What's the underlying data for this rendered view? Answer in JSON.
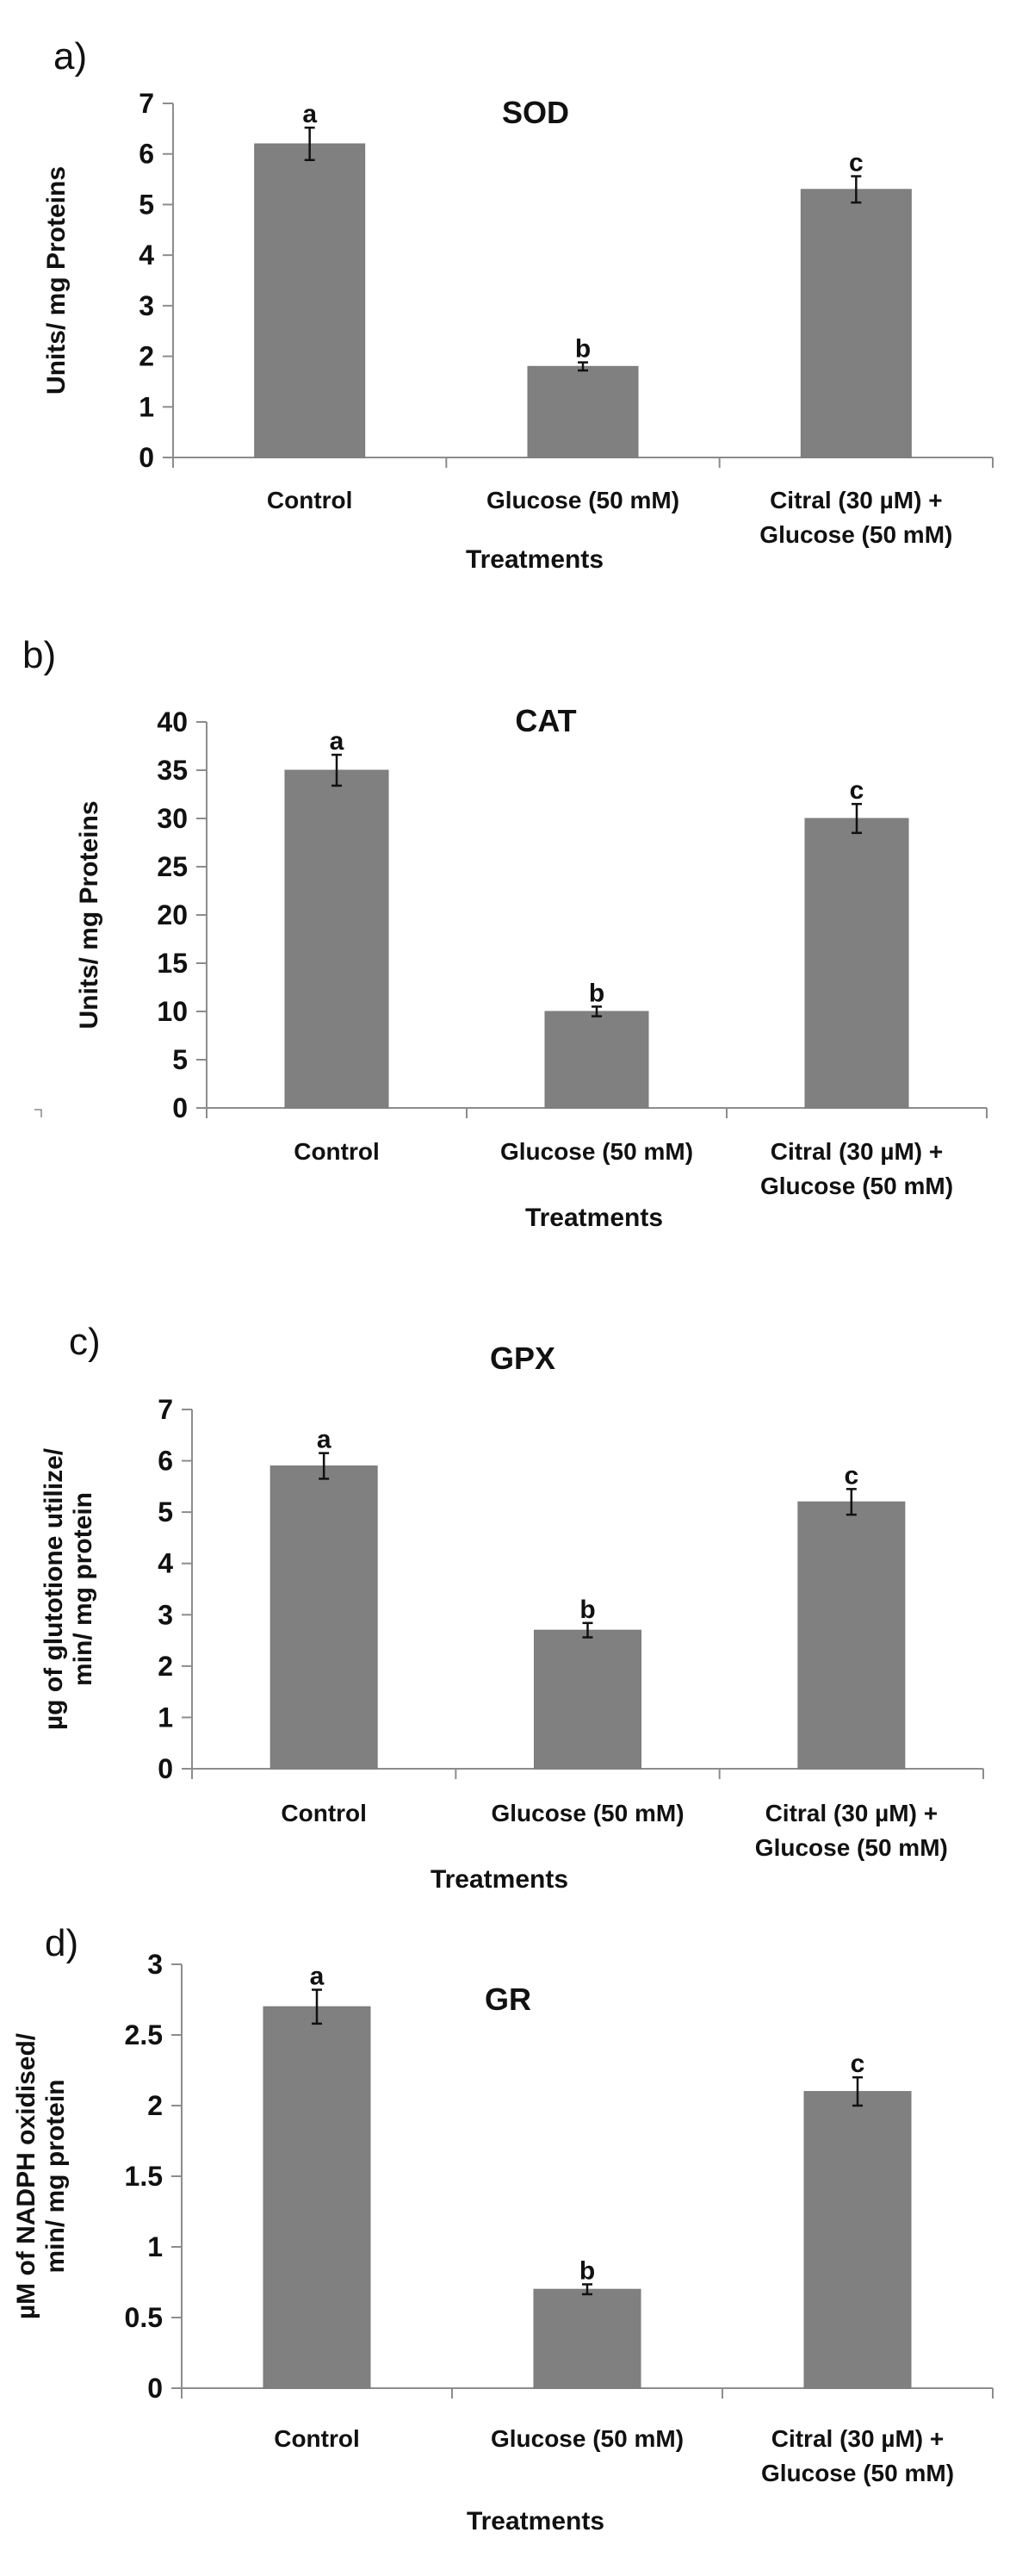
{
  "chart_data": [
    {
      "type": "bar",
      "panel": "a)",
      "title": "SOD",
      "xlabel": "Treatments",
      "ylabel": [
        "Units/ mg Proteins"
      ],
      "categories": [
        [
          "Control"
        ],
        [
          "Glucose (50 mM)"
        ],
        [
          "Citral (30 µM) +",
          "Glucose (50 mM)"
        ]
      ],
      "values": [
        6.2,
        1.8,
        5.3
      ],
      "errors": [
        0.32,
        0.08,
        0.26
      ],
      "significance": [
        "a",
        "b",
        "c"
      ],
      "ylim": [
        0,
        7
      ],
      "yticks": [
        0,
        1,
        2,
        3,
        4,
        5,
        6,
        7
      ],
      "ytick_labels": [
        "0",
        "1",
        "2",
        "3",
        "4",
        "5",
        "6",
        "7"
      ],
      "grid": false,
      "bar_color": "#808080"
    },
    {
      "type": "bar",
      "panel": "b)",
      "title": "CAT",
      "xlabel": "Treatments",
      "ylabel": [
        "Units/ mg Proteins"
      ],
      "categories": [
        [
          "Control"
        ],
        [
          "Glucose (50 mM)"
        ],
        [
          "Citral (30 µM) +",
          "Glucose (50 mM)"
        ]
      ],
      "values": [
        35,
        10,
        30
      ],
      "errors": [
        1.6,
        0.5,
        1.5
      ],
      "significance": [
        "a",
        "b",
        "c"
      ],
      "ylim": [
        0,
        40
      ],
      "yticks": [
        0,
        5,
        10,
        15,
        20,
        25,
        30,
        35,
        40
      ],
      "ytick_labels": [
        "0",
        "5",
        "10",
        "15",
        "20",
        "25",
        "30",
        "35",
        "40"
      ],
      "grid": false,
      "bar_color": "#808080"
    },
    {
      "type": "bar",
      "panel": "c)",
      "title": "GPX",
      "xlabel": "Treatments",
      "ylabel": [
        "µg of glutotione utilize/",
        "min/ mg protein"
      ],
      "categories": [
        [
          "Control"
        ],
        [
          "Glucose (50 mM)"
        ],
        [
          "Citral (30 µM) +",
          "Glucose (50 mM)"
        ]
      ],
      "values": [
        5.9,
        2.7,
        5.2
      ],
      "errors": [
        0.25,
        0.14,
        0.25
      ],
      "significance": [
        "a",
        "b",
        "c"
      ],
      "ylim": [
        0,
        7
      ],
      "yticks": [
        0,
        1,
        2,
        3,
        4,
        5,
        6,
        7
      ],
      "ytick_labels": [
        "0",
        "1",
        "2",
        "3",
        "4",
        "5",
        "6",
        "7"
      ],
      "grid": false,
      "bar_color": "#808080"
    },
    {
      "type": "bar",
      "panel": "d)",
      "title": "GR",
      "xlabel": "Treatments",
      "ylabel": [
        "µM of NADPH oxidised/",
        "min/ mg protein"
      ],
      "categories": [
        [
          "Control"
        ],
        [
          "Glucose (50 mM)"
        ],
        [
          "Citral (30 µM) +",
          "Glucose (50 mM)"
        ]
      ],
      "values": [
        2.7,
        0.7,
        2.1
      ],
      "errors": [
        0.12,
        0.035,
        0.1
      ],
      "significance": [
        "a",
        "b",
        "c"
      ],
      "ylim": [
        0,
        3
      ],
      "yticks": [
        0,
        0.5,
        1,
        1.5,
        2,
        2.5,
        3
      ],
      "ytick_labels": [
        "0",
        "0.5",
        "1",
        "1.5",
        "2",
        "2.5",
        "3"
      ],
      "grid": false,
      "bar_color": "#808080"
    }
  ]
}
